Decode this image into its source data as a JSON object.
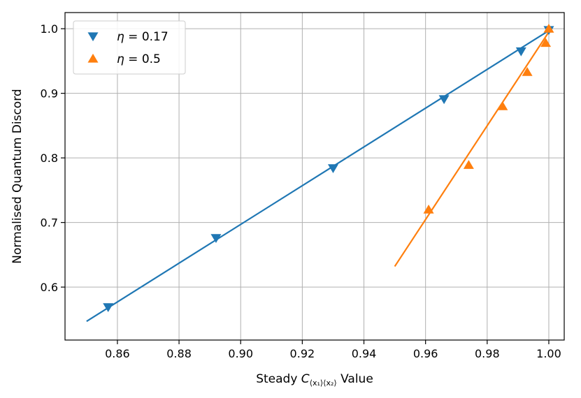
{
  "chart_data": {
    "type": "scatter",
    "xlabel_prefix": "Steady ",
    "xlabel_symbol": "C",
    "xlabel_sub": "⟨x₁⟩⟨x₂⟩",
    "xlabel_suffix": " Value",
    "ylabel": "Normalised Quantum Discord",
    "xlim": [
      0.843,
      1.005
    ],
    "ylim": [
      0.518,
      1.025
    ],
    "xticks": [
      0.86,
      0.88,
      0.9,
      0.92,
      0.94,
      0.96,
      0.98,
      1.0
    ],
    "xtick_labels": [
      "0.86",
      "0.88",
      "0.90",
      "0.92",
      "0.94",
      "0.96",
      "0.98",
      "1.00"
    ],
    "yticks": [
      0.6,
      0.7,
      0.8,
      0.9,
      1.0
    ],
    "ytick_labels": [
      "0.6",
      "0.7",
      "0.8",
      "0.9",
      "1.0"
    ],
    "grid": true,
    "legend_position": "top-left",
    "series": [
      {
        "name_symbol": "η",
        "name_value": " = 0.17",
        "color": "#1f77b4",
        "marker": "triangle-down",
        "points": [
          {
            "x": 0.857,
            "y": 0.569
          },
          {
            "x": 0.892,
            "y": 0.676
          },
          {
            "x": 0.93,
            "y": 0.784
          },
          {
            "x": 0.966,
            "y": 0.891
          },
          {
            "x": 0.991,
            "y": 0.965
          },
          {
            "x": 1.0,
            "y": 0.998
          }
        ],
        "fit": {
          "x": [
            0.85,
            1.0
          ],
          "y": [
            0.547,
            0.997
          ]
        }
      },
      {
        "name_symbol": "η",
        "name_value": " = 0.5",
        "color": "#ff7f0e",
        "marker": "triangle-up",
        "points": [
          {
            "x": 0.961,
            "y": 0.72
          },
          {
            "x": 0.974,
            "y": 0.789
          },
          {
            "x": 0.985,
            "y": 0.88
          },
          {
            "x": 0.993,
            "y": 0.933
          },
          {
            "x": 0.999,
            "y": 0.978
          },
          {
            "x": 1.0,
            "y": 1.0
          }
        ],
        "fit": {
          "x": [
            0.95,
            1.0
          ],
          "y": [
            0.632,
            0.995
          ]
        }
      }
    ]
  }
}
